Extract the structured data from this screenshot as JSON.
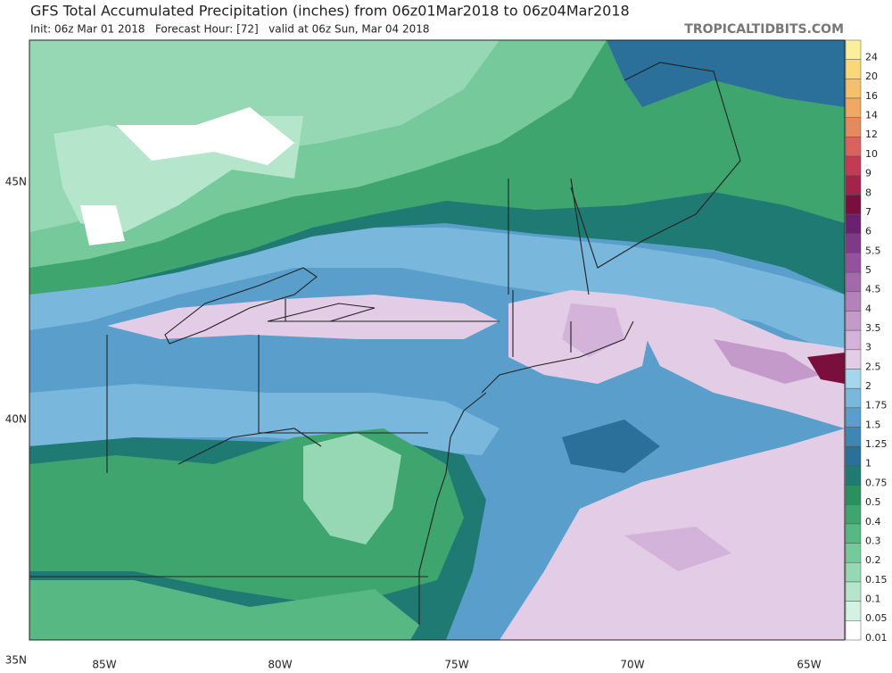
{
  "header": {
    "title": "GFS Total Accumulated Precipitation (inches) from 06z01Mar2018 to 06z04Mar2018",
    "subtitle": "Init: 06z Mar 01 2018   Forecast Hour: [72]   valid at 06z Sun, Mar 04 2018",
    "credit": "TROPICALTIDBITS.COM"
  },
  "map": {
    "latitude_labels": [
      "45N",
      "40N",
      "35N"
    ],
    "longitude_labels": [
      "85W",
      "80W",
      "75W",
      "70W",
      "65W"
    ]
  },
  "colorbar": {
    "levels": [
      {
        "label": "24",
        "color": "#fcef9c"
      },
      {
        "label": "20",
        "color": "#f9d87a"
      },
      {
        "label": "16",
        "color": "#f5c06b"
      },
      {
        "label": "14",
        "color": "#efa964"
      },
      {
        "label": "12",
        "color": "#e58a5f"
      },
      {
        "label": "10",
        "color": "#d9625f"
      },
      {
        "label": "9",
        "color": "#c13a56"
      },
      {
        "label": "8",
        "color": "#a3244b"
      },
      {
        "label": "7",
        "color": "#7a0f3e"
      },
      {
        "label": "6",
        "color": "#6a2270"
      },
      {
        "label": "5.5",
        "color": "#7f3a87"
      },
      {
        "label": "5",
        "color": "#93529b"
      },
      {
        "label": "4.5",
        "color": "#a36aab"
      },
      {
        "label": "4",
        "color": "#b482bb"
      },
      {
        "label": "3.5",
        "color": "#c39ac9"
      },
      {
        "label": "3",
        "color": "#d4b3da"
      },
      {
        "label": "2.5",
        "color": "#e3cce6"
      },
      {
        "label": "2",
        "color": "#a6d6ee"
      },
      {
        "label": "1.75",
        "color": "#79b8dc"
      },
      {
        "label": "1.5",
        "color": "#5a9fcb"
      },
      {
        "label": "1.25",
        "color": "#3e86b3"
      },
      {
        "label": "1",
        "color": "#2b6f9b"
      },
      {
        "label": "0.75",
        "color": "#1f7a74"
      },
      {
        "label": "0.5",
        "color": "#2a915e"
      },
      {
        "label": "0.4",
        "color": "#3ea56f"
      },
      {
        "label": "0.3",
        "color": "#58b884"
      },
      {
        "label": "0.2",
        "color": "#76c99b"
      },
      {
        "label": "0.15",
        "color": "#95d8b3"
      },
      {
        "label": "0.1",
        "color": "#b5e6cc"
      },
      {
        "label": "0.05",
        "color": "#d4f2e2"
      },
      {
        "label": "0.01",
        "color": "#ffffff"
      }
    ]
  }
}
